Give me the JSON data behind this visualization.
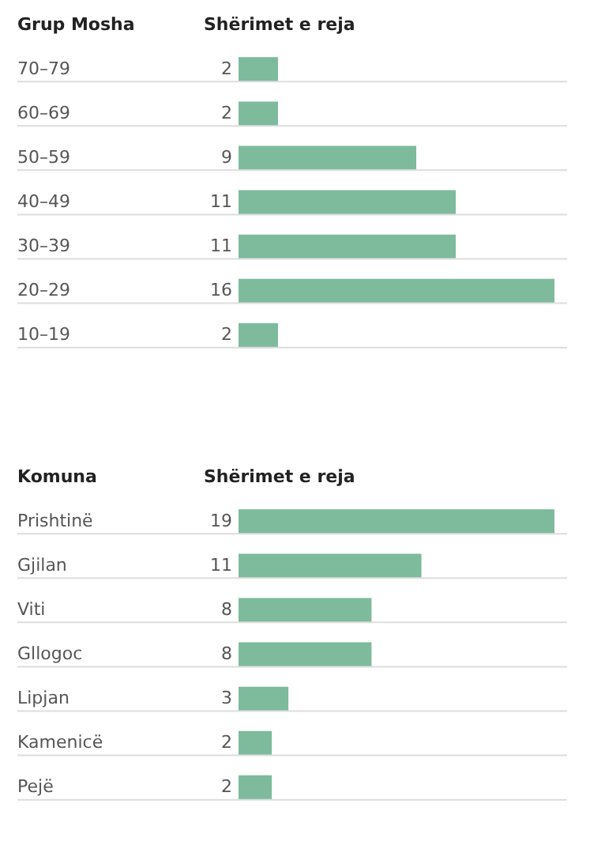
{
  "chart_data": [
    {
      "type": "bar",
      "orientation": "horizontal",
      "ylabel": "Grup Mosha",
      "xlabel": "Shërimet e reja",
      "categories": [
        "70–79",
        "60–69",
        "50–59",
        "40–49",
        "30–39",
        "20–29",
        "10–19"
      ],
      "values": [
        2,
        2,
        9,
        11,
        11,
        16,
        2
      ],
      "color": "#7dbb9c",
      "data_labels": true,
      "grid": "y"
    },
    {
      "type": "bar",
      "orientation": "horizontal",
      "ylabel": "Komuna",
      "xlabel": "Shërimet e reja",
      "categories": [
        "Prishtinë",
        "Gjilan",
        "Viti",
        "Gllogoc",
        "Lipjan",
        "Kamenicë",
        "Pejë"
      ],
      "values": [
        19,
        11,
        8,
        8,
        3,
        2,
        2
      ],
      "color": "#7dbb9c",
      "data_labels": true,
      "grid": "y"
    }
  ]
}
